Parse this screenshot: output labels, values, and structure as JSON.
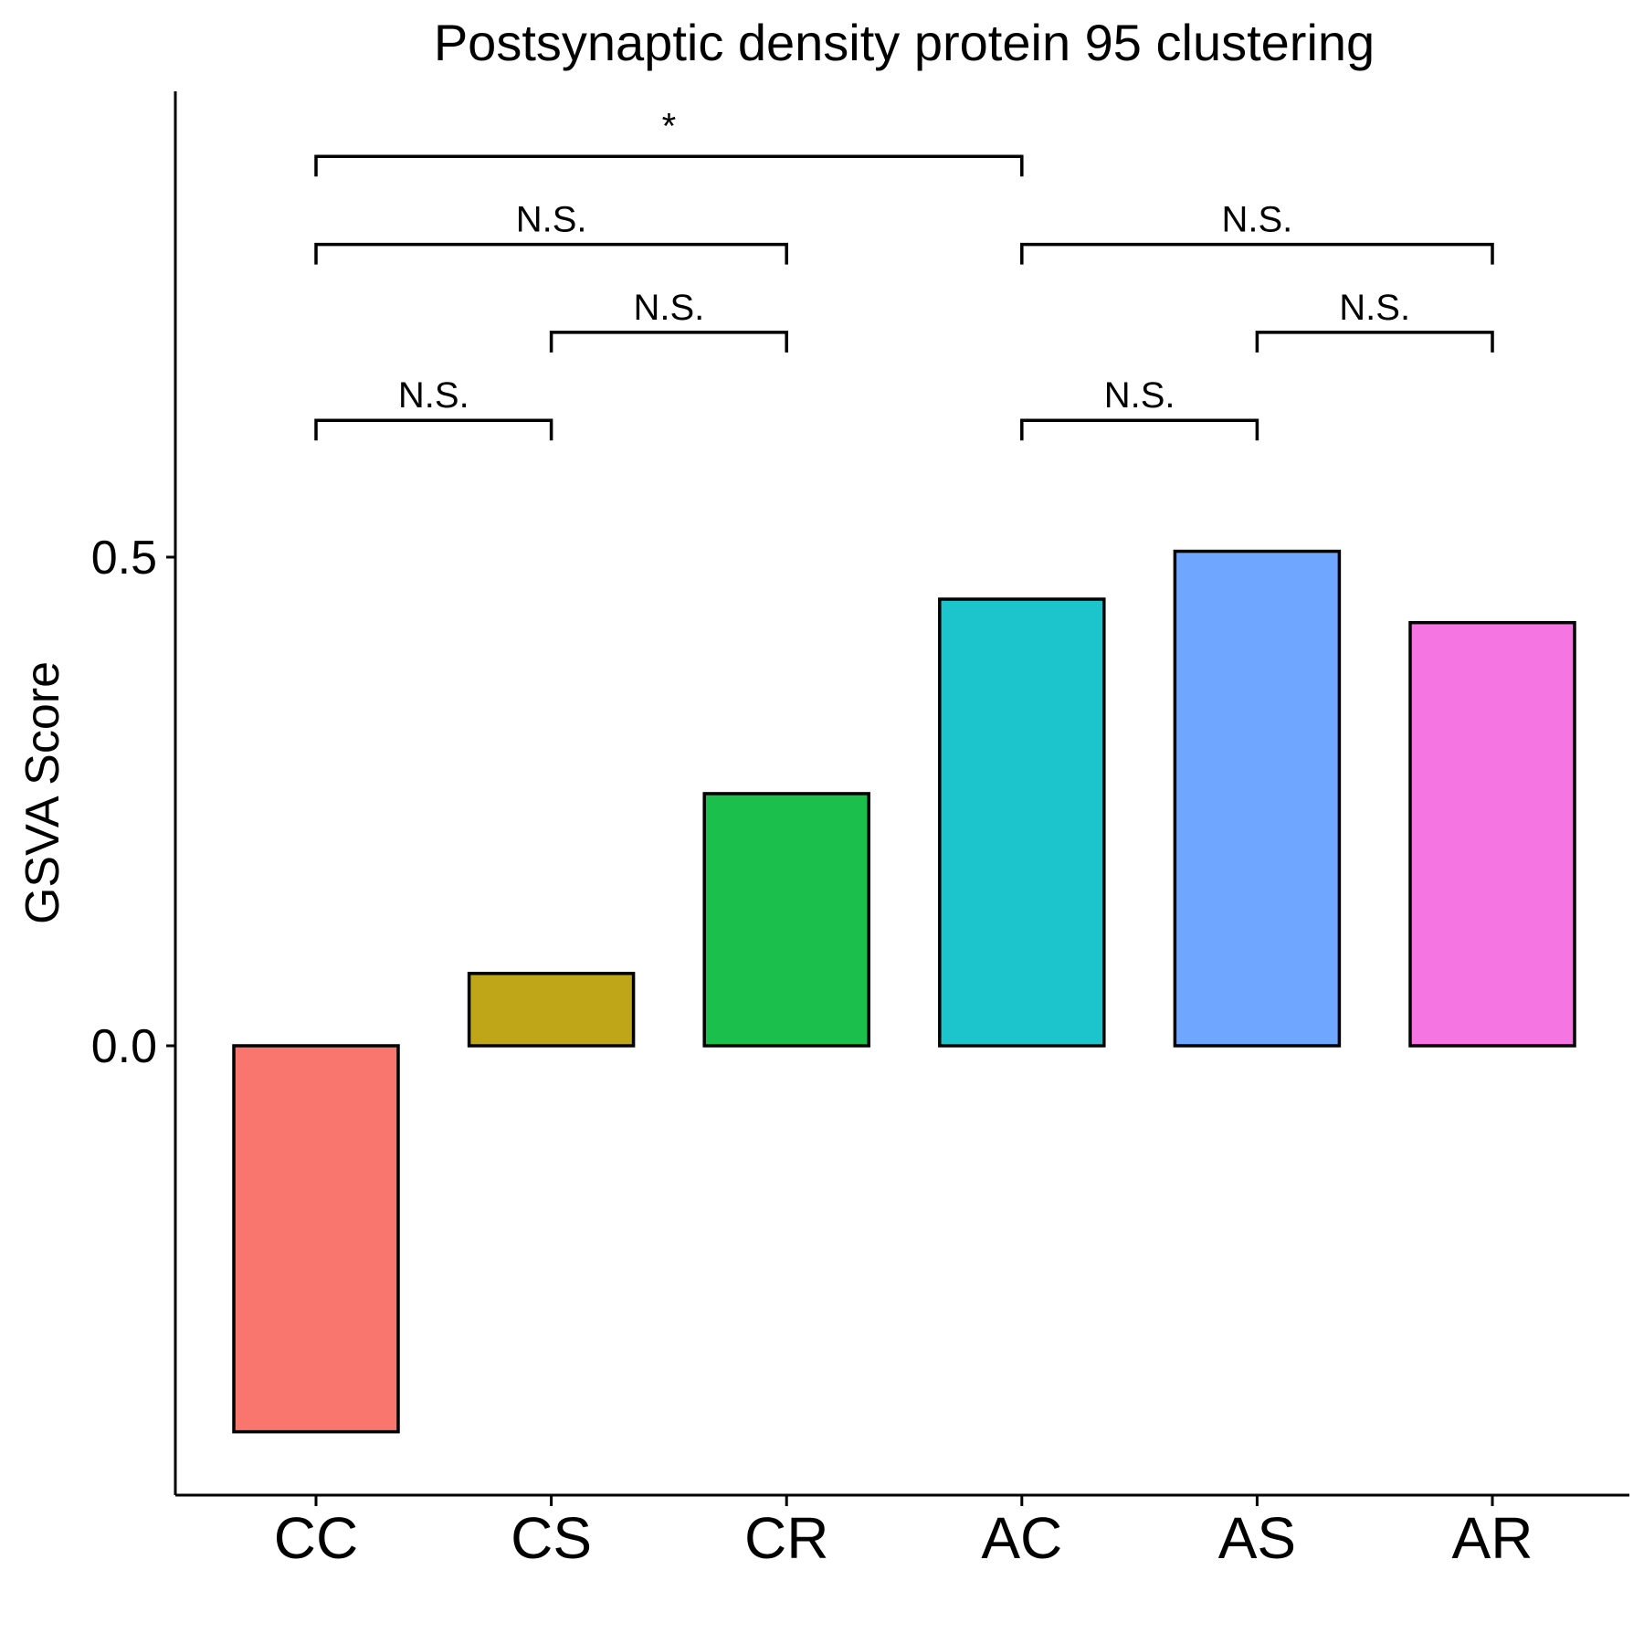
{
  "chart_data": {
    "type": "bar",
    "title": "Postsynaptic density protein 95 clustering",
    "xlabel": "",
    "ylabel": "GSVA Score",
    "categories": [
      "CC",
      "CS",
      "CR",
      "AC",
      "AS",
      "AR"
    ],
    "values": [
      -0.395,
      0.074,
      0.258,
      0.457,
      0.506,
      0.433
    ],
    "colors": [
      "#F8766D",
      "#BFA518",
      "#1BBF4C",
      "#1CC4CC",
      "#6FA6FF",
      "#F575E3"
    ],
    "yticks": [
      0.0,
      0.5
    ],
    "ytick_labels": [
      "0.0",
      "0.5"
    ],
    "ylim": [
      -0.46,
      0.98
    ],
    "grid": false,
    "legend": "none",
    "comparisons": [
      {
        "from": "CC",
        "to": "CS",
        "label": "N.S.",
        "y": 0.64
      },
      {
        "from": "CS",
        "to": "CR",
        "label": "N.S.",
        "y": 0.73
      },
      {
        "from": "CC",
        "to": "CR",
        "label": "N.S.",
        "y": 0.82
      },
      {
        "from": "CC",
        "to": "AC",
        "label": "*",
        "y": 0.91
      },
      {
        "from": "AC",
        "to": "AS",
        "label": "N.S.",
        "y": 0.64
      },
      {
        "from": "AS",
        "to": "AR",
        "label": "N.S.",
        "y": 0.73
      },
      {
        "from": "AC",
        "to": "AR",
        "label": "N.S.",
        "y": 0.82
      }
    ]
  }
}
